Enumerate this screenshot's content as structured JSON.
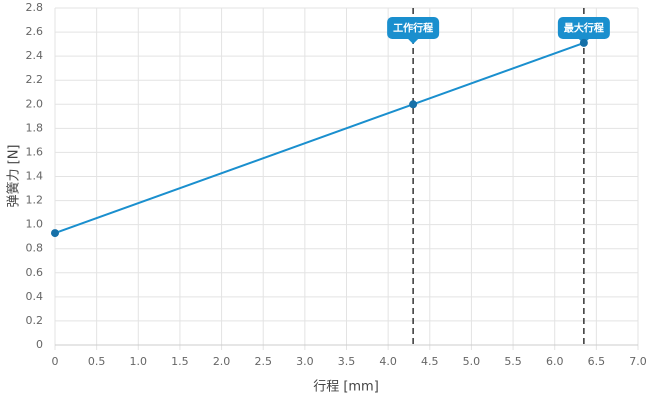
{
  "chart_data": {
    "type": "line",
    "x_label": "行程 [mm]",
    "y_label": "弹簧力 [N]",
    "x": [
      0,
      4.3,
      6.35
    ],
    "values": [
      0.93,
      2.0,
      2.51
    ],
    "color": "#1a8fce",
    "xlim": [
      0,
      7
    ],
    "xticks": [
      0,
      0.5,
      {
        "value": 1,
        "label": "1.0"
      },
      1.5,
      {
        "value": 2,
        "label": "2.0"
      },
      2.5,
      {
        "value": 3,
        "label": "3.0"
      },
      3.5,
      {
        "value": 4,
        "label": "4.0"
      },
      4.5,
      {
        "value": 5,
        "label": "5.0"
      },
      5.5,
      {
        "value": 6,
        "label": "6.0"
      },
      6.5,
      {
        "value": 7,
        "label": "7.0"
      }
    ],
    "ylim": [
      0,
      2.8
    ],
    "yticks": [
      0,
      0.2,
      0.4,
      0.6,
      0.8,
      {
        "value": 1,
        "label": "1.0"
      },
      1.2,
      1.4,
      1.6,
      1.8,
      {
        "value": 2,
        "label": "2.0"
      },
      2.2,
      2.4,
      2.6,
      2.8
    ],
    "grid": true,
    "annotations": [
      {
        "x": 4.3,
        "label": "工作行程"
      },
      {
        "x": 6.35,
        "label": "最大行程"
      }
    ]
  }
}
